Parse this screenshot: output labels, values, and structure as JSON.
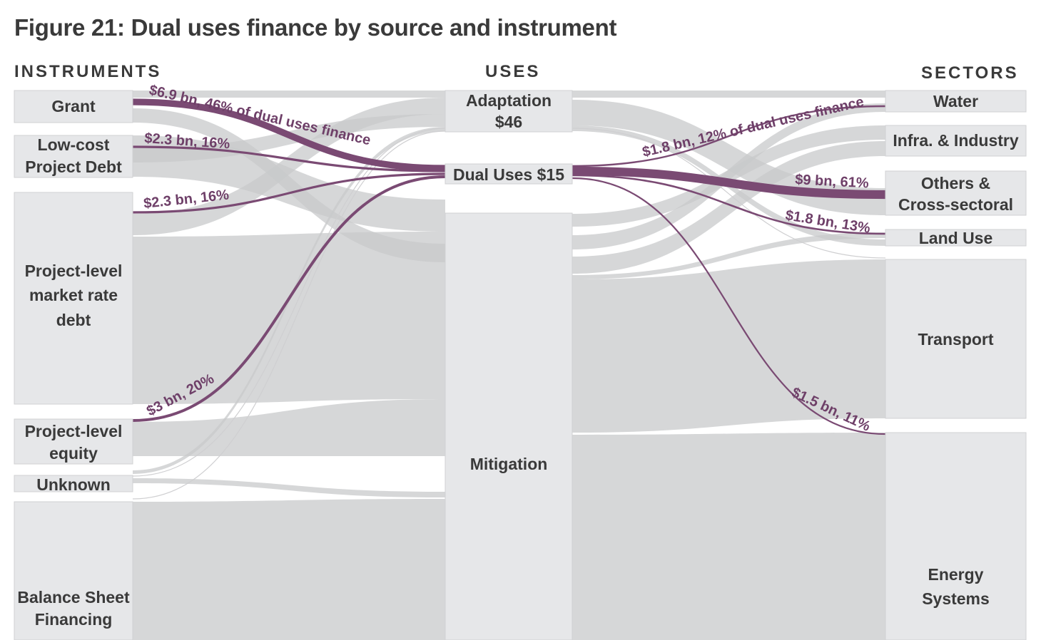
{
  "title": "Figure 21: Dual uses finance by source and instrument",
  "columns": {
    "instruments": "INSTRUMENTS",
    "uses": "USES",
    "sectors": "SECTORS"
  },
  "colors": {
    "dual_flow": "#7a4a73",
    "annotation": "#6e3f68",
    "gray_flow": "#c8c9cb",
    "node_fill": "#e6e7e9"
  },
  "nodes": {
    "instruments": [
      {
        "id": "grant",
        "lines": [
          "Grant"
        ]
      },
      {
        "id": "lowcost",
        "lines": [
          "Low-cost",
          "Project Debt"
        ]
      },
      {
        "id": "marketdebt",
        "lines": [
          "Project-level",
          "market rate",
          "debt"
        ]
      },
      {
        "id": "equity",
        "lines": [
          "Project-level",
          "equity"
        ]
      },
      {
        "id": "unknown",
        "lines": [
          "Unknown"
        ]
      },
      {
        "id": "balance",
        "lines": [
          "Balance Sheet",
          "Financing"
        ]
      }
    ],
    "uses": [
      {
        "id": "adaptation",
        "lines": [
          "Adaptation",
          "$46"
        ]
      },
      {
        "id": "dual",
        "lines": [
          "Dual Uses $15"
        ]
      },
      {
        "id": "mitigation",
        "lines": [
          "Mitigation"
        ]
      }
    ],
    "sectors": [
      {
        "id": "water",
        "lines": [
          "Water"
        ]
      },
      {
        "id": "infra",
        "lines": [
          "Infra. & Industry"
        ]
      },
      {
        "id": "others",
        "lines": [
          "Others &",
          "Cross-sectoral"
        ]
      },
      {
        "id": "landuse",
        "lines": [
          "Land Use"
        ]
      },
      {
        "id": "transport",
        "lines": [
          "Transport"
        ]
      },
      {
        "id": "energy",
        "lines": [
          "Energy",
          "Systems"
        ]
      }
    ]
  },
  "dual_flows": [
    {
      "from": "grant",
      "to": "dual",
      "label": "$6.9 bn, 46% of dual uses finance",
      "share": 0.46
    },
    {
      "from": "lowcost",
      "to": "dual",
      "label": "$2.3 bn, 16%",
      "share": 0.16
    },
    {
      "from": "marketdebt",
      "to": "dual",
      "label": "$2.3 bn, 16%",
      "share": 0.16
    },
    {
      "from": "equity",
      "to": "dual",
      "label": "$3 bn, 20%",
      "share": 0.2
    },
    {
      "from": "dual",
      "to": "water",
      "label": "$1.8 bn, 12% of dual uses finance",
      "share": 0.12
    },
    {
      "from": "dual",
      "to": "others",
      "label": "$9 bn, 61%",
      "share": 0.61
    },
    {
      "from": "dual",
      "to": "landuse",
      "label": "$1.8 bn, 13%",
      "share": 0.13
    },
    {
      "from": "dual",
      "to": "energy",
      "label": "$1.5 bn, 11%",
      "share": 0.11
    }
  ]
}
